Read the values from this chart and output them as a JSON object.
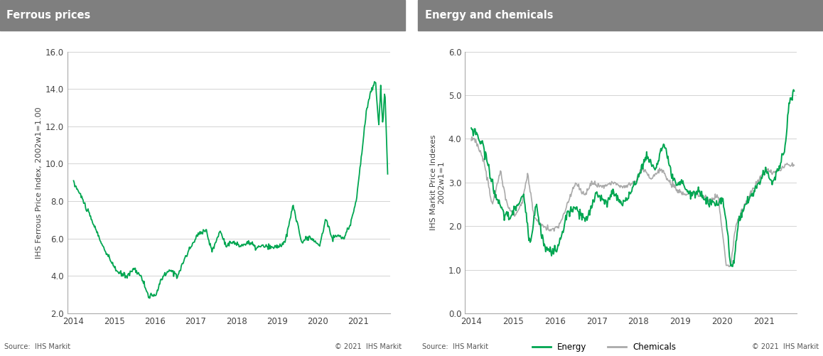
{
  "ferrous": {
    "title": "Ferrous prices",
    "ylabel": "IHS Ferrous Price Index, 2002w1=1.00",
    "ylim": [
      2.0,
      16.0
    ],
    "yticks": [
      2.0,
      4.0,
      6.0,
      8.0,
      10.0,
      12.0,
      14.0,
      16.0
    ],
    "color": "#00A651",
    "source_left": "Source:  IHS Markit",
    "source_right": "© 2021  IHS Markit"
  },
  "energy": {
    "title": "Energy and chemicals",
    "ylabel": "IHS Markit Price Indexes\n2002w1=1",
    "ylim": [
      0.0,
      6.0
    ],
    "yticks": [
      0.0,
      1.0,
      2.0,
      3.0,
      4.0,
      5.0,
      6.0
    ],
    "energy_color": "#00A651",
    "chemicals_color": "#AAAAAA",
    "source_left": "Source:  IHS Markit",
    "source_right": "© 2021  IHS Markit"
  },
  "header_color": "#7F7F7F",
  "header_text_color": "#FFFFFF",
  "background_color": "#FFFFFF",
  "plot_bg_color": "#FFFFFF",
  "grid_color": "#CCCCCC",
  "axis_color": "#AAAAAA",
  "tick_color": "#444444",
  "xlabel_years": [
    "2014",
    "2015",
    "2016",
    "2017",
    "2018",
    "2019",
    "2020",
    "2021"
  ]
}
